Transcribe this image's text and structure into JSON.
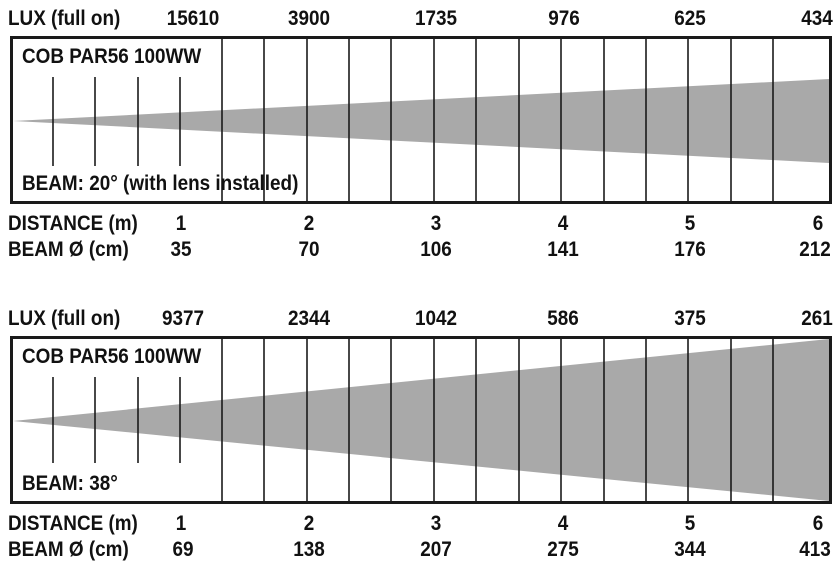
{
  "diagrams": [
    {
      "lux_label": "LUX (full on)",
      "model": "COB PAR56 100WW",
      "beam_text": "BEAM: 20° (with lens installed)",
      "distance_label": "DISTANCE (m)",
      "diameter_label": "BEAM Ø (cm)",
      "beam_angle_deg": 20,
      "lux": [
        "15610",
        "3900",
        "1735",
        "976",
        "625",
        "434"
      ],
      "distances": [
        "1",
        "2",
        "3",
        "4",
        "5",
        "6"
      ],
      "diameters": [
        "35",
        "70",
        "106",
        "141",
        "176",
        "212"
      ]
    },
    {
      "lux_label": "LUX (full on)",
      "model": "COB PAR56 100WW",
      "beam_text": "BEAM: 38°",
      "distance_label": "DISTANCE (m)",
      "diameter_label": "BEAM Ø (cm)",
      "beam_angle_deg": 38,
      "lux": [
        "9377",
        "2344",
        "1042",
        "586",
        "375",
        "261"
      ],
      "distances": [
        "1",
        "2",
        "3",
        "4",
        "5",
        "6"
      ],
      "diameters": [
        "69",
        "138",
        "207",
        "275",
        "344",
        "413"
      ]
    }
  ],
  "colors": {
    "beam_fill": "#a9a9a9",
    "lines": "#1a1a1a",
    "text": "#111111"
  }
}
